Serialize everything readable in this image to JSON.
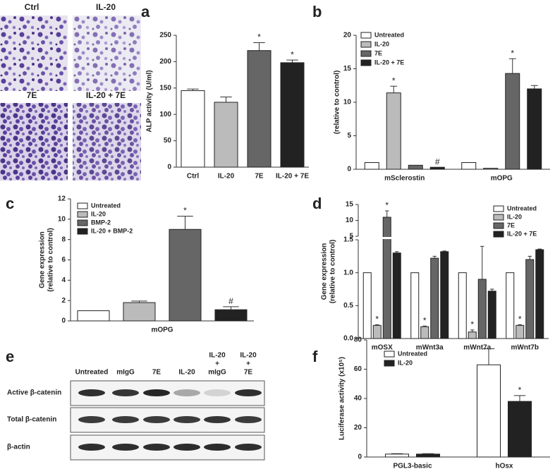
{
  "chart_data": [
    {
      "type": "bar",
      "panel": "a",
      "ylabel": "ALP activity (U/ml)",
      "categories": [
        "Ctrl",
        "IL-20",
        "7E",
        "IL-20 + 7E"
      ],
      "values": [
        145,
        123,
        221,
        198
      ],
      "errors": [
        3,
        10,
        15,
        5
      ],
      "significance": [
        null,
        null,
        "*",
        "*"
      ],
      "colors": [
        "#ffffff",
        "#bbbbbb",
        "#666666",
        "#222222"
      ],
      "ylim": [
        0,
        250
      ],
      "yticks": [
        0,
        50,
        100,
        150,
        200,
        250
      ]
    },
    {
      "type": "bar",
      "panel": "b",
      "ylabel": [
        "(relative to control)"
      ],
      "categories": [
        "mSclerostin",
        "mOPG"
      ],
      "series": [
        {
          "name": "Untreated",
          "color": "#ffffff",
          "values": [
            1,
            1
          ],
          "errors": [
            0,
            0
          ],
          "significance": [
            null,
            null
          ]
        },
        {
          "name": "IL-20",
          "color": "#bbbbbb",
          "values": [
            11.4,
            0.15
          ],
          "errors": [
            1,
            0
          ],
          "significance": [
            "*",
            null
          ]
        },
        {
          "name": "7E",
          "color": "#666666",
          "values": [
            0.6,
            14.3
          ],
          "errors": [
            0,
            2.2
          ],
          "significance": [
            null,
            "*"
          ]
        },
        {
          "name": "IL-20 + 7E",
          "color": "#222222",
          "values": [
            0.3,
            12
          ],
          "errors": [
            0,
            0.5
          ],
          "significance": [
            "#",
            null
          ]
        }
      ],
      "ylim": [
        0,
        20
      ],
      "yticks": [
        0,
        5,
        10,
        15,
        20
      ]
    },
    {
      "type": "bar",
      "panel": "c",
      "ylabel": [
        "Gene expression",
        "(relative to control)"
      ],
      "categories": [
        "mOPG"
      ],
      "series": [
        {
          "name": "Untreated",
          "color": "#ffffff",
          "values": [
            1
          ],
          "errors": [
            0
          ],
          "significance": [
            null
          ]
        },
        {
          "name": "IL-20",
          "color": "#bbbbbb",
          "values": [
            1.8
          ],
          "errors": [
            0.15
          ],
          "significance": [
            null
          ]
        },
        {
          "name": "BMP-2",
          "color": "#666666",
          "values": [
            9
          ],
          "errors": [
            1.3
          ],
          "significance": [
            "*"
          ]
        },
        {
          "name": "IL-20 + BMP-2",
          "color": "#222222",
          "values": [
            1.1
          ],
          "errors": [
            0.3
          ],
          "significance": [
            "#"
          ]
        }
      ],
      "ylim": [
        0,
        12
      ],
      "yticks": [
        0,
        2,
        4,
        6,
        8,
        10,
        12
      ]
    },
    {
      "type": "bar",
      "panel": "d",
      "ylabel": [
        "Gene expression",
        "(relative to control)"
      ],
      "categories": [
        "mOSX",
        "mWnt3a",
        "mWnt7a",
        "mWnt7b"
      ],
      "series": [
        {
          "name": "Untreated",
          "color": "#ffffff",
          "values": [
            1,
            1,
            1,
            1
          ],
          "errors": [
            0,
            0,
            0,
            0
          ],
          "significance": [
            null,
            null,
            null,
            null
          ]
        },
        {
          "name": "IL-20",
          "color": "#bbbbbb",
          "values": [
            0.2,
            0.18,
            0.1,
            0.2
          ],
          "errors": [
            0.01,
            0.01,
            0.03,
            0.01
          ],
          "significance": [
            "*",
            "*",
            "*",
            "*"
          ]
        },
        {
          "name": "7E",
          "color": "#666666",
          "values": [
            11,
            1.22,
            0.9,
            1.2
          ],
          "errors": [
            2,
            0.03,
            0.5,
            0.05
          ],
          "significance": [
            "*",
            null,
            null,
            null
          ]
        },
        {
          "name": "IL-20 + 7E",
          "color": "#222222",
          "values": [
            1.3,
            1.32,
            0.72,
            1.35
          ],
          "errors": [
            0.02,
            0.01,
            0.03,
            0.01
          ],
          "significance": [
            null,
            null,
            null,
            null
          ]
        }
      ],
      "ylim": [
        0,
        15
      ],
      "ybreak": [
        1.5,
        5
      ],
      "yticks": [
        {
          "value": 0,
          "label": "0.0"
        },
        0.5,
        {
          "value": 1,
          "label": "1.0"
        },
        1.5,
        5,
        10,
        15
      ]
    },
    {
      "type": "bar",
      "panel": "f",
      "ylabel": "Luciferase activity (x10⁵)",
      "categories": [
        "PGL3-basic",
        "hOsx"
      ],
      "series": [
        {
          "name": "Untreated",
          "color": "#ffffff",
          "values": [
            2,
            63
          ],
          "errors": [
            0.3,
            11
          ],
          "significance": [
            null,
            null
          ]
        },
        {
          "name": "IL-20",
          "color": "#222222",
          "values": [
            2,
            38
          ],
          "errors": [
            0.3,
            4
          ],
          "significance": [
            null,
            "*"
          ]
        }
      ],
      "ylim": [
        0,
        80
      ],
      "yticks": [
        0,
        20,
        40,
        60,
        80
      ]
    }
  ],
  "micrographs": {
    "labels": [
      "Ctrl",
      "IL-20",
      "7E",
      "IL-20 + 7E"
    ]
  },
  "western_blot": {
    "panel": "e",
    "lanes": [
      [
        "Untreated"
      ],
      [
        "mIgG"
      ],
      [
        "7E"
      ],
      [
        "IL-20"
      ],
      [
        "IL-20",
        "+",
        "mIgG"
      ],
      [
        "IL-20",
        "+",
        "7E"
      ]
    ],
    "rows": [
      "Active β-catenin",
      "Total β-catenin",
      "β-actin"
    ]
  }
}
